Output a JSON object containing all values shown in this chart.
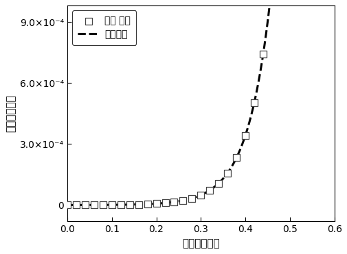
{
  "xlabel": "电压（伏特）",
  "ylabel": "电流（安培）",
  "legend_measured": "测量 数据",
  "legend_fitted": "拟合曲线",
  "xlim": [
    0.0,
    0.6
  ],
  "ylim": [
    -8e-05,
    0.00098
  ],
  "yticks": [
    0.0,
    0.0003,
    0.0006,
    0.0009
  ],
  "xticks": [
    0.0,
    0.1,
    0.2,
    0.3,
    0.4,
    0.5,
    0.6
  ],
  "diode_I0": 1.5e-07,
  "diode_n": 2.0,
  "diode_T": 300,
  "background_color": "#ffffff",
  "line_color": "#000000",
  "scatter_step": 0.02,
  "fit_num_points": 1000
}
